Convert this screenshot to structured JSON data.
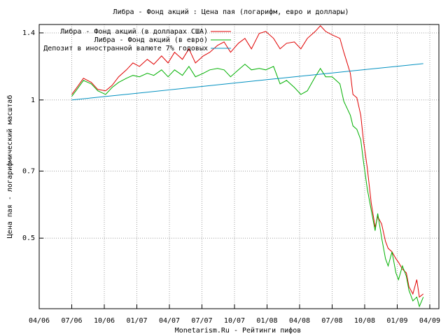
{
  "chart_data": {
    "type": "line",
    "title": "Либра - Фонд акций : Цена пая (логарифм, евро и доллары)",
    "x_label": "Monetarism.Ru - Рейтинги пифов",
    "y_label": "Цена пая - логарифмический масштаб",
    "log_y": true,
    "grid": true,
    "legend": "top-left",
    "xlim": [
      2006.25,
      2009.32
    ],
    "ylim": [
      0.351,
      1.46
    ],
    "xticks": [
      {
        "value": 2006.25,
        "label": "04/06"
      },
      {
        "value": 2006.5,
        "label": "07/06"
      },
      {
        "value": 2006.75,
        "label": "10/06"
      },
      {
        "value": 2007.0,
        "label": "01/07"
      },
      {
        "value": 2007.25,
        "label": "04/07"
      },
      {
        "value": 2007.5,
        "label": "07/07"
      },
      {
        "value": 2007.75,
        "label": "10/07"
      },
      {
        "value": 2008.0,
        "label": "01/08"
      },
      {
        "value": 2008.25,
        "label": "04/08"
      },
      {
        "value": 2008.5,
        "label": "07/08"
      },
      {
        "value": 2008.75,
        "label": "10/08"
      },
      {
        "value": 2009.0,
        "label": "01/09"
      },
      {
        "value": 2009.25,
        "label": "04/09"
      }
    ],
    "yticks": [
      1.4,
      1,
      0.7,
      0.5
    ],
    "series": [
      {
        "name": "Либра - Фонд акций (в долларах США)",
        "color": "#e00000",
        "x": [
          2006.5,
          2006.54,
          2006.59,
          2006.65,
          2006.7,
          2006.76,
          2006.81,
          2006.86,
          2006.92,
          2006.97,
          2007.02,
          2007.08,
          2007.13,
          2007.19,
          2007.24,
          2007.29,
          2007.35,
          2007.4,
          2007.45,
          2007.51,
          2007.56,
          2007.62,
          2007.67,
          2007.72,
          2007.78,
          2007.83,
          2007.88,
          2007.94,
          2007.99,
          2008.05,
          2008.1,
          2008.15,
          2008.21,
          2008.26,
          2008.31,
          2008.37,
          2008.41,
          2008.45,
          2008.5,
          2008.56,
          2008.59,
          2008.64,
          2008.66,
          2008.69,
          2008.72,
          2008.74,
          2008.77,
          2008.8,
          2008.83,
          2008.85,
          2008.88,
          2008.91,
          2008.93,
          2008.96,
          2008.99,
          2009.01,
          2009.04,
          2009.07,
          2009.09,
          2009.12,
          2009.15,
          2009.17,
          2009.2
        ],
        "values": [
          1.028,
          1.065,
          1.115,
          1.092,
          1.054,
          1.047,
          1.076,
          1.123,
          1.163,
          1.204,
          1.183,
          1.226,
          1.196,
          1.247,
          1.204,
          1.27,
          1.226,
          1.292,
          1.204,
          1.247,
          1.27,
          1.315,
          1.338,
          1.27,
          1.329,
          1.362,
          1.292,
          1.396,
          1.41,
          1.362,
          1.292,
          1.329,
          1.338,
          1.292,
          1.362,
          1.41,
          1.451,
          1.41,
          1.386,
          1.362,
          1.27,
          1.143,
          1.028,
          1.011,
          0.926,
          0.819,
          0.711,
          0.597,
          0.528,
          0.557,
          0.537,
          0.492,
          0.475,
          0.467,
          0.451,
          0.443,
          0.428,
          0.42,
          0.392,
          0.378,
          0.406,
          0.372,
          0.378
        ]
      },
      {
        "name": "Либра - Фонд акций (в евро)",
        "color": "#00b000",
        "x": [
          2006.5,
          2006.54,
          2006.59,
          2006.65,
          2006.7,
          2006.76,
          2006.81,
          2006.86,
          2006.92,
          2006.97,
          2007.02,
          2007.08,
          2007.13,
          2007.19,
          2007.24,
          2007.29,
          2007.35,
          2007.4,
          2007.45,
          2007.51,
          2007.56,
          2007.62,
          2007.67,
          2007.72,
          2007.78,
          2007.83,
          2007.88,
          2007.94,
          2007.99,
          2008.05,
          2008.1,
          2008.15,
          2008.21,
          2008.26,
          2008.31,
          2008.37,
          2008.41,
          2008.45,
          2008.5,
          2008.56,
          2008.59,
          2008.64,
          2008.66,
          2008.69,
          2008.72,
          2008.74,
          2008.77,
          2008.8,
          2008.83,
          2008.85,
          2008.88,
          2008.91,
          2008.93,
          2008.96,
          2008.99,
          2009.01,
          2009.04,
          2009.07,
          2009.09,
          2009.12,
          2009.15,
          2009.17,
          2009.2
        ],
        "values": [
          1.018,
          1.054,
          1.103,
          1.084,
          1.047,
          1.028,
          1.065,
          1.092,
          1.115,
          1.131,
          1.123,
          1.143,
          1.131,
          1.163,
          1.123,
          1.163,
          1.131,
          1.183,
          1.123,
          1.143,
          1.163,
          1.171,
          1.163,
          1.123,
          1.163,
          1.196,
          1.163,
          1.171,
          1.163,
          1.183,
          1.084,
          1.103,
          1.065,
          1.028,
          1.047,
          1.123,
          1.171,
          1.123,
          1.123,
          1.084,
          0.993,
          0.926,
          0.878,
          0.863,
          0.819,
          0.737,
          0.64,
          0.576,
          0.519,
          0.566,
          0.501,
          0.451,
          0.435,
          0.467,
          0.42,
          0.406,
          0.435,
          0.413,
          0.385,
          0.365,
          0.372,
          0.355,
          0.372
        ]
      },
      {
        "name": "Депозит в иностранной валюте 7% годовых",
        "color": "#0090c0",
        "x": [
          2006.5,
          2007.0,
          2007.5,
          2008.0,
          2008.5,
          2009.0,
          2009.2
        ],
        "values": [
          1.0,
          1.034,
          1.07,
          1.107,
          1.145,
          1.184,
          1.2
        ]
      }
    ]
  }
}
